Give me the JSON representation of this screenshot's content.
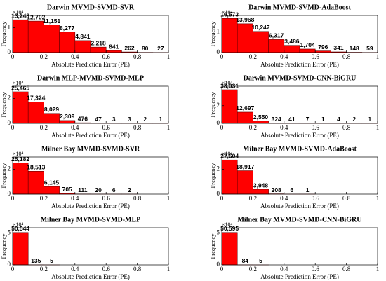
{
  "chart_data": [
    {
      "type": "histogram",
      "title": "Darwin MVMD-SVMD-SVR",
      "xlabel": "Absolute Prediction Error (PE)",
      "ylabel": "Frequency",
      "y_multiplier": "×10⁴",
      "bins": [
        0,
        0.1,
        0.2,
        0.3,
        0.4,
        0.5,
        0.6,
        0.7,
        0.8,
        0.9,
        1
      ],
      "values": [
        13248,
        12702,
        11151,
        8277,
        4841,
        2218,
        841,
        262,
        80,
        27
      ],
      "value_labels": [
        "13,248",
        "12,702",
        "11,151",
        "8,277",
        "4,841",
        "2,218",
        "841",
        "262",
        "80",
        "27"
      ],
      "xlim": [
        0,
        1
      ],
      "xticks": [
        0,
        0.2,
        0.4,
        0.6,
        0.8,
        1
      ],
      "ylim": [
        0,
        15000
      ],
      "yticks": [
        0,
        {
          "value": 10000,
          "label": "1"
        }
      ],
      "color": "#ff0000"
    },
    {
      "type": "histogram",
      "title": "Darwin MVMD-SVMD-AdaBoost",
      "xlabel": "Absolute Prediction Error (PE)",
      "ylabel": "Frequency",
      "y_multiplier": "×10⁴",
      "bins": [
        0,
        0.1,
        0.2,
        0.3,
        0.4,
        0.5,
        0.6,
        0.7,
        0.8,
        0.9,
        1
      ],
      "values": [
        16573,
        13968,
        10247,
        6317,
        3486,
        1704,
        796,
        341,
        148,
        59
      ],
      "value_labels": [
        "16,573",
        "13,968",
        "10,247",
        "6,317",
        "3,486",
        "1,704",
        "796",
        "341",
        "148",
        "59"
      ],
      "xlim": [
        0,
        1
      ],
      "xticks": [
        0,
        0.2,
        0.4,
        0.6,
        0.8,
        1
      ],
      "ylim": [
        0,
        18000
      ],
      "yticks": [
        0,
        {
          "value": 10000,
          "label": "1"
        }
      ],
      "color": "#ff0000"
    },
    {
      "type": "histogram",
      "title": "Darwin MLP-MVMD-SVMD-MLP",
      "xlabel": "Absolute Prediction Error (PE)",
      "ylabel": "Frequency",
      "y_multiplier": "×10⁴",
      "bins": [
        0,
        0.1,
        0.2,
        0.3,
        0.4,
        0.5,
        0.6,
        0.7,
        0.8,
        0.9,
        1
      ],
      "values": [
        25465,
        17324,
        8029,
        2309,
        476,
        47,
        3,
        3,
        2,
        1
      ],
      "value_labels": [
        "25,465",
        "17,324",
        "8,029",
        "2,309",
        "476",
        "47",
        "3",
        "3",
        "2",
        "1"
      ],
      "xlim": [
        0,
        1
      ],
      "xticks": [
        0,
        0.2,
        0.4,
        0.6,
        0.8,
        1
      ],
      "ylim": [
        0,
        30000
      ],
      "yticks": [
        0,
        {
          "value": 20000,
          "label": "2"
        }
      ],
      "color": "#ff0000"
    },
    {
      "type": "histogram",
      "title": "Darwin MVMD-SVMD-CNN-BiGRU",
      "xlabel": "Absolute Prediction Error (PE)",
      "ylabel": "Frequency",
      "y_multiplier": "×10⁴",
      "bins": [
        0,
        0.1,
        0.2,
        0.3,
        0.4,
        0.5,
        0.6,
        0.7,
        0.8,
        0.9,
        1
      ],
      "values": [
        38031,
        12697,
        2550,
        324,
        41,
        7,
        1,
        4,
        2,
        1
      ],
      "value_labels": [
        "38,031",
        "12,697",
        "2,550",
        "324",
        "41",
        "7",
        "1",
        "4",
        "2",
        "1"
      ],
      "xlim": [
        0,
        1
      ],
      "xticks": [
        0,
        0.2,
        0.4,
        0.6,
        0.8,
        1
      ],
      "ylim": [
        0,
        42000
      ],
      "yticks": [
        0,
        {
          "value": 20000,
          "label": "2"
        }
      ],
      "color": "#ff0000"
    },
    {
      "type": "histogram",
      "title": "Milner Bay MVMD-SVMD-SVR",
      "xlabel": "Absolute Prediction Error (PE)",
      "ylabel": "Frequency",
      "y_multiplier": "×10⁴",
      "bins": [
        0,
        0.1,
        0.2,
        0.3,
        0.4,
        0.5,
        0.6,
        0.7,
        0.8
      ],
      "values": [
        25182,
        18513,
        6145,
        705,
        111,
        20,
        6,
        2
      ],
      "value_labels": [
        "25,182",
        "18,513",
        "6,145",
        "705",
        "111",
        "20",
        "6",
        "2"
      ],
      "xlim": [
        0,
        1
      ],
      "xticks": [
        0,
        0.2,
        0.4,
        0.6,
        0.8,
        1
      ],
      "ylim": [
        0,
        30000
      ],
      "yticks": [
        0,
        {
          "value": 20000,
          "label": "2"
        }
      ],
      "color": "#ff0000"
    },
    {
      "type": "histogram",
      "title": "Milner Bay MVMD-SVMD-AdaBoost",
      "xlabel": "Absolute Prediction Error (PE)",
      "ylabel": "Frequency",
      "y_multiplier": "×10⁴",
      "bins": [
        0,
        0.1,
        0.2,
        0.3,
        0.4,
        0.5,
        0.6
      ],
      "values": [
        27604,
        18917,
        3948,
        208,
        6,
        1
      ],
      "value_labels": [
        "27,604",
        "18,917",
        "3,948",
        "208",
        "6",
        "1"
      ],
      "xlim": [
        0,
        1
      ],
      "xticks": [
        0,
        0.2,
        0.4,
        0.6,
        0.8,
        1
      ],
      "ylim": [
        0,
        30000
      ],
      "yticks": [
        0,
        {
          "value": 20000,
          "label": "2"
        }
      ],
      "color": "#ff0000"
    },
    {
      "type": "histogram",
      "title": "Milner Bay MVMD-SVMD-MLP",
      "xlabel": "Absolute Prediction Error (PE)",
      "ylabel": "Frequency",
      "y_multiplier": "×10⁴",
      "bins": [
        0,
        0.1,
        0.2,
        0.3
      ],
      "values": [
        50544,
        135,
        5
      ],
      "value_labels": [
        "50,544",
        "135",
        "5"
      ],
      "xlim": [
        0,
        1
      ],
      "xticks": [
        0,
        0.2,
        0.4,
        0.6,
        0.8,
        1
      ],
      "ylim": [
        0,
        58000
      ],
      "yticks": [
        0,
        {
          "value": 50000,
          "label": "5"
        }
      ],
      "color": "#ff0000"
    },
    {
      "type": "histogram",
      "title": "Milner Bay MVMD-SVMD-CNN-BiGRU",
      "xlabel": "Absolute Prediction Error (PE)",
      "ylabel": "Frequency",
      "y_multiplier": "×10⁴",
      "bins": [
        0,
        0.1,
        0.2,
        0.3
      ],
      "values": [
        50595,
        84,
        5
      ],
      "value_labels": [
        "50,595",
        "84",
        "5"
      ],
      "xlim": [
        0,
        1
      ],
      "xticks": [
        0,
        0.2,
        0.4,
        0.6,
        0.8,
        1
      ],
      "ylim": [
        0,
        58000
      ],
      "yticks": [
        0,
        {
          "value": 50000,
          "label": "5"
        }
      ],
      "color": "#ff0000"
    }
  ]
}
